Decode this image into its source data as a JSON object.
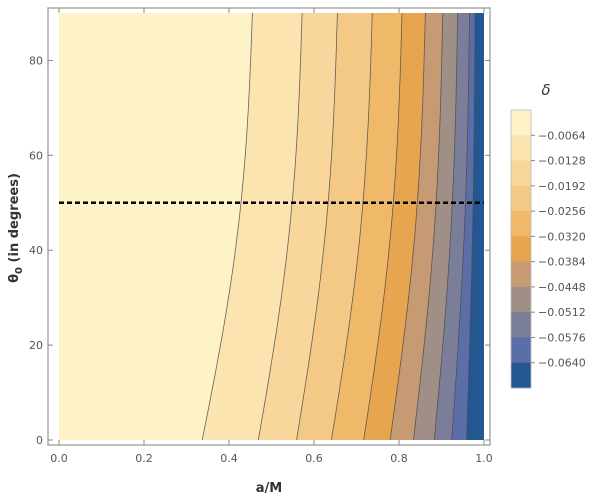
{
  "chart_data": {
    "type": "contour",
    "xlabel": "a/M",
    "ylabel_main": "θ",
    "ylabel_sub": "0",
    "ylabel_rest": " (in degrees)",
    "xlim": [
      0,
      1
    ],
    "ylim": [
      0,
      90
    ],
    "xticks": [
      {
        "value": 0.0,
        "label": "0.0"
      },
      {
        "value": 0.2,
        "label": "0.2"
      },
      {
        "value": 0.4,
        "label": "0.4"
      },
      {
        "value": 0.6,
        "label": "0.6"
      },
      {
        "value": 0.8,
        "label": "0.8"
      },
      {
        "value": 1.0,
        "label": "1.0"
      }
    ],
    "yticks": [
      {
        "value": 0,
        "label": "0"
      },
      {
        "value": 20,
        "label": "20"
      },
      {
        "value": 40,
        "label": "40"
      },
      {
        "value": 60,
        "label": "60"
      },
      {
        "value": 80,
        "label": "80"
      }
    ],
    "legend": {
      "title": "δ",
      "placement": "right",
      "levels": [
        "-0.0064",
        "-0.0128",
        "-0.0192",
        "-0.0256",
        "-0.0320",
        "-0.0384",
        "-0.0448",
        "-0.0512",
        "-0.0576",
        "-0.0640"
      ],
      "colors": [
        "#fdf3c6",
        "#fbe4b0",
        "#f8d69c",
        "#f4c985",
        "#f0b96a",
        "#e8a550",
        "#c69a73",
        "#9f8f86",
        "#7a7e98",
        "#5b6ea8",
        "#245691"
      ]
    },
    "contours": [
      {
        "level": -0.0064,
        "x_at_y0": 0.337,
        "x_at_y90": 0.455
      },
      {
        "level": -0.0128,
        "x_at_y0": 0.469,
        "x_at_y90": 0.572
      },
      {
        "level": -0.0192,
        "x_at_y0": 0.559,
        "x_at_y90": 0.655
      },
      {
        "level": -0.0256,
        "x_at_y0": 0.641,
        "x_at_y90": 0.737
      },
      {
        "level": -0.032,
        "x_at_y0": 0.717,
        "x_at_y90": 0.807
      },
      {
        "level": -0.0384,
        "x_at_y0": 0.779,
        "x_at_y90": 0.862
      },
      {
        "level": -0.0448,
        "x_at_y0": 0.834,
        "x_at_y90": 0.903
      },
      {
        "level": -0.0512,
        "x_at_y0": 0.883,
        "x_at_y90": 0.938
      },
      {
        "level": -0.0576,
        "x_at_y0": 0.924,
        "x_at_y90": 0.966
      },
      {
        "level": -0.064,
        "x_at_y0": 0.959,
        "x_at_y90": 0.979
      }
    ],
    "reference_line": {
      "type": "horizontal",
      "y": 50,
      "style": "dashed",
      "color": "#000000"
    },
    "grid": false
  }
}
